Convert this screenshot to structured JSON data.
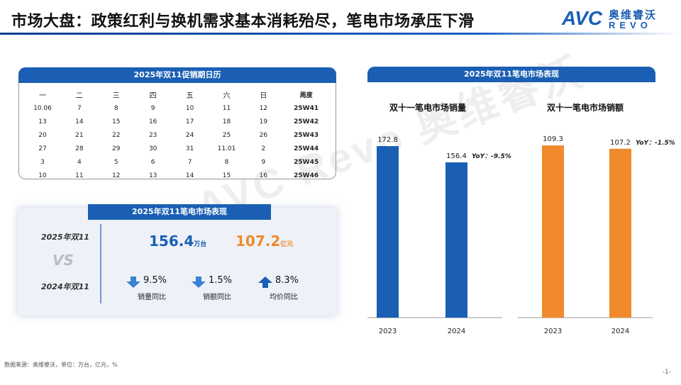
{
  "header": {
    "title": "市场大盘：政策红利与换机需求基本消耗殆尽，笔电市场承压下滑",
    "logo_avc": "AVC",
    "logo_cn": "奥维睿沃",
    "logo_revo": "REVO",
    "brand_color": "#1a5fb4"
  },
  "watermark": "AVC Revo 奥维睿沃",
  "calendar": {
    "title": "2025年双11促销期日历",
    "headers": [
      "一",
      "二",
      "三",
      "四",
      "五",
      "六",
      "日",
      "周度"
    ],
    "rows": [
      [
        "10.06",
        "7",
        "8",
        "9",
        "10",
        "11",
        "12",
        "25W41"
      ],
      [
        "13",
        "14",
        "15",
        "16",
        "17",
        "18",
        "19",
        "25W42"
      ],
      [
        "20",
        "21",
        "22",
        "23",
        "24",
        "25",
        "26",
        "25W43"
      ],
      [
        "27",
        "28",
        "29",
        "30",
        "31",
        "11.01",
        "2",
        "25W44"
      ],
      [
        "3",
        "4",
        "5",
        "6",
        "7",
        "8",
        "9",
        "25W45"
      ],
      [
        "10",
        "11",
        "12",
        "13",
        "14",
        "15",
        "16",
        "25W46"
      ]
    ]
  },
  "summary": {
    "title": "2025年双11笔电市场表现",
    "label_2025": "2025年双11",
    "label_vs": "VS",
    "label_2024": "2024年双11",
    "sales_value": "156.4",
    "sales_unit": "万台",
    "revenue_value": "107.2",
    "revenue_unit": "亿元",
    "metrics": [
      {
        "value": "9.5%",
        "label": "销量同比",
        "direction": "down"
      },
      {
        "value": "1.5%",
        "label": "销额同比",
        "direction": "down"
      },
      {
        "value": "8.3%",
        "label": "均价同比",
        "direction": "up"
      }
    ],
    "colors": {
      "down": "#3b82d6",
      "up": "#1a5fb4",
      "revenue": "#f08a2c"
    }
  },
  "chart_panel_title": "2025年双11笔电市场表现",
  "chart_data": [
    {
      "type": "bar",
      "title": "双十一笔电市场销量",
      "categories": [
        "2023",
        "2024"
      ],
      "values": [
        172.8,
        156.4
      ],
      "data_labels": [
        "172.8",
        "156.4"
      ],
      "annotation": "YoY：-9.5%",
      "color": "#1a5fb4",
      "ylim": [
        0,
        200
      ]
    },
    {
      "type": "bar",
      "title": "双十一笔电市场销额",
      "categories": [
        "2023",
        "2024"
      ],
      "values": [
        109.3,
        107.2
      ],
      "data_labels": [
        "109.3",
        "107.2"
      ],
      "annotation": "YoY：-1.5%",
      "color": "#f08a2c",
      "ylim": [
        0,
        126
      ]
    }
  ],
  "footer": {
    "source": "数据来源：奥维睿沃，单位：万台，亿元，%",
    "page": "-1-"
  }
}
